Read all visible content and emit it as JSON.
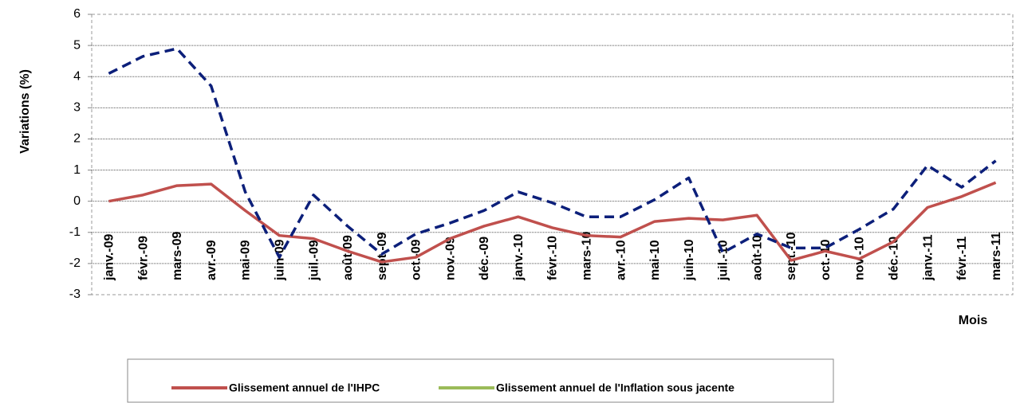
{
  "chart_data": {
    "type": "line",
    "y_label": "Variations (%)",
    "x_label": "Mois",
    "categories": [
      "janv.-09",
      "févr.-09",
      "mars-09",
      "avr.-09",
      "mai-09",
      "juin-09",
      "juil.-09",
      "août-09",
      "sept.-09",
      "oct.-09",
      "nov.-09",
      "déc.-09",
      "janv.-10",
      "févr.-10",
      "mars-10",
      "avr.-10",
      "mai-10",
      "juin-10",
      "juil.-10",
      "août-10",
      "sept.-10",
      "oct.-10",
      "nov.-10",
      "déc.-10",
      "janv.-11",
      "févr.-11",
      "mars-11"
    ],
    "series": [
      {
        "name": "Glissement annuel de l'IHPC",
        "color": "#c0504d",
        "dashed": false,
        "values": [
          0,
          0.2,
          0.5,
          0.55,
          -0.3,
          -1.1,
          -1.2,
          -1.6,
          -1.95,
          -1.8,
          -1.2,
          -0.8,
          -0.5,
          -0.85,
          -1.1,
          -1.15,
          -0.65,
          -0.55,
          -0.6,
          -0.45,
          -1.9,
          -1.6,
          -1.85,
          -1.3,
          -0.2,
          0.15,
          0.6
        ]
      },
      {
        "name": "Glissement annuel de l'Inflation sous jacente",
        "color": "#0c1f7a",
        "legend_color": "#9bbb59",
        "dashed": true,
        "values": [
          4.1,
          4.65,
          4.9,
          3.7,
          0.3,
          -1.8,
          0.2,
          -0.8,
          -1.7,
          -1.05,
          -0.7,
          -0.3,
          0.3,
          -0.05,
          -0.5,
          -0.5,
          0.05,
          0.75,
          -1.65,
          -1.05,
          -1.5,
          -1.5,
          -0.9,
          -0.25,
          1.15,
          0.45,
          1.3
        ]
      }
    ],
    "ylim": [
      -3,
      6
    ],
    "yticks": [
      -3,
      -2,
      -1,
      0,
      1,
      2,
      3,
      4,
      5,
      6
    ],
    "grid": true,
    "legend": "bottom"
  }
}
